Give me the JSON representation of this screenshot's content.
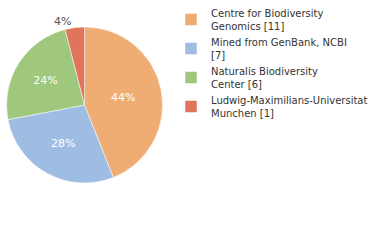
{
  "chart_data": {
    "type": "pie",
    "categories": [
      "Centre for Biodiversity Genomics [11]",
      "Mined from GenBank, NCBI [7]",
      "Naturalis Biodiversity Center [6]",
      "Ludwig-Maximilians-Universitat Munchen [1]"
    ],
    "values": [
      44,
      28,
      24,
      4
    ],
    "value_labels": [
      "44%",
      "28%",
      "24%",
      "4%"
    ],
    "colors": [
      "#f0ad73",
      "#9fbde3",
      "#9fc87c",
      "#e0755c"
    ],
    "data_labels": true,
    "legend": "top right"
  }
}
